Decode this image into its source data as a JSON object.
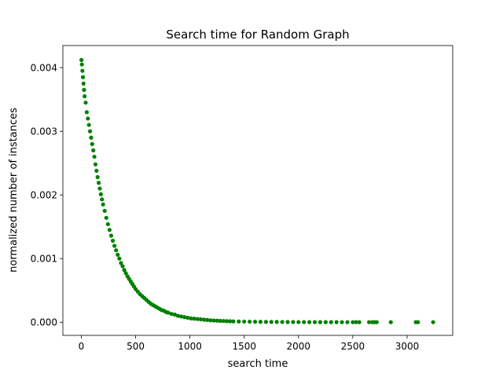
{
  "chart_data": {
    "type": "scatter",
    "title": "Search time for Random Graph",
    "xlabel": "search time",
    "ylabel": "normalized number of instances",
    "xlim": [
      -170,
      3420
    ],
    "ylim": [
      -0.000207,
      0.004347
    ],
    "xticks": [
      0,
      500,
      1000,
      1500,
      2000,
      2500,
      3000
    ],
    "xtick_labels": [
      "0",
      "500",
      "1000",
      "1500",
      "2000",
      "2500",
      "3000"
    ],
    "yticks": [
      0.0,
      0.001,
      0.002,
      0.003,
      0.004
    ],
    "ytick_labels": [
      "0.000",
      "0.001",
      "0.002",
      "0.003",
      "0.004"
    ],
    "grid": false,
    "legend": "none",
    "marker_color": "#008000",
    "x": [
      1,
      5,
      10,
      15,
      20,
      25,
      30,
      40,
      50,
      60,
      70,
      80,
      90,
      100,
      110,
      120,
      130,
      140,
      150,
      160,
      170,
      180,
      190,
      200,
      215,
      230,
      245,
      260,
      275,
      290,
      305,
      320,
      335,
      350,
      365,
      380,
      395,
      410,
      425,
      440,
      455,
      470,
      485,
      500,
      520,
      540,
      560,
      580,
      600,
      620,
      640,
      660,
      680,
      700,
      720,
      740,
      760,
      780,
      800,
      830,
      860,
      890,
      920,
      950,
      980,
      1010,
      1040,
      1070,
      1100,
      1130,
      1160,
      1190,
      1220,
      1250,
      1280,
      1310,
      1340,
      1370,
      1400,
      1450,
      1500,
      1550,
      1600,
      1650,
      1700,
      1750,
      1800,
      1850,
      1900,
      1950,
      2000,
      2050,
      2100,
      2150,
      2200,
      2250,
      2300,
      2350,
      2400,
      2450,
      2500,
      2530,
      2560,
      2650,
      2680,
      2700,
      2720,
      2850,
      3080,
      3100,
      3240
    ],
    "y": [
      0.00412,
      0.00405,
      0.00395,
      0.00385,
      0.00375,
      0.00365,
      0.00355,
      0.00345,
      0.0033,
      0.0032,
      0.0031,
      0.003,
      0.0029,
      0.0028,
      0.0027,
      0.0026,
      0.00248,
      0.00238,
      0.00228,
      0.00219,
      0.0021,
      0.00201,
      0.00193,
      0.00185,
      0.00175,
      0.00164,
      0.00154,
      0.00145,
      0.00136,
      0.00128,
      0.0012,
      0.00113,
      0.00106,
      0.001,
      0.00093,
      0.00088,
      0.00082,
      0.00077,
      0.00072,
      0.00068,
      0.00064,
      0.0006,
      0.00056,
      0.00052,
      0.00048,
      0.00044,
      0.00041,
      0.00038,
      0.00035,
      0.00032,
      0.00029,
      0.00027,
      0.00025,
      0.00023,
      0.00021,
      0.00019,
      0.00018,
      0.00016,
      0.00015,
      0.00013,
      0.00012,
      0.0001,
      9e-05,
      8e-05,
      7e-05,
      6e-05,
      5.5e-05,
      5e-05,
      4.5e-05,
      4e-05,
      3.5e-05,
      3e-05,
      2.7e-05,
      2.4e-05,
      2.1e-05,
      1.9e-05,
      1.7e-05,
      1.5e-05,
      1.3e-05,
      1.1e-05,
      9.5e-06,
      8e-06,
      7e-06,
      6e-06,
      5e-06,
      4.5e-06,
      4e-06,
      3.5e-06,
      3e-06,
      2.5e-06,
      2e-06,
      1.8e-06,
      1.6e-06,
      1.4e-06,
      1.2e-06,
      1e-06,
      9e-07,
      8e-07,
      7e-07,
      6e-07,
      5e-07,
      5e-07,
      4e-07,
      4e-07,
      3e-07,
      3e-07,
      3e-07,
      2e-07,
      2e-07,
      2e-07,
      2e-07
    ]
  }
}
